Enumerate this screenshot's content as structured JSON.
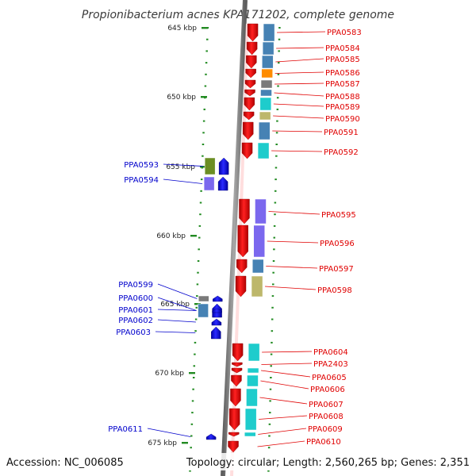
{
  "title": "Propionibacterium acnes KPA171202, complete genome",
  "footer": {
    "accession": "Accession: NC_006085",
    "stats": "Topology: circular; Length: 2,560,265 bp; Genes: 2,351"
  },
  "colors": {
    "forward_strand_arrow": "#e60000",
    "reverse_strand_arrow": "#0000e6",
    "tick": "#228b22",
    "backbone": "#8c8c8c",
    "forward_label": "#e00000",
    "reverse_label": "#0000cc",
    "function_steelblue": "#4682b4",
    "function_cyan": "#1ecccc",
    "function_orange": "#ff8c00",
    "function_gray": "#7a7a7a",
    "function_khaki": "#bdb76b",
    "function_slateblue": "#7b68ee",
    "function_olive": "#6b8e23",
    "function_spring": "#00e68c"
  },
  "kbp_labels": [
    "645 kbp",
    "650 kbp",
    "655 kbp",
    "660 kbp",
    "665 kbp",
    "670 kbp",
    "675 kbp"
  ],
  "forward_genes": [
    {
      "label": "PPA0583",
      "func_color": "steelblue"
    },
    {
      "label": "PPA0584",
      "func_color": "steelblue"
    },
    {
      "label": "PPA0585",
      "func_color": "steelblue"
    },
    {
      "label": "PPA0586",
      "func_color": "orange"
    },
    {
      "label": "PPA0587",
      "func_color": "gray"
    },
    {
      "label": "PPA0588",
      "func_color": "steelblue"
    },
    {
      "label": "PPA0589",
      "func_color": "cyan"
    },
    {
      "label": "PPA0590",
      "func_color": "khaki"
    },
    {
      "label": "PPA0591",
      "func_color": "steelblue"
    },
    {
      "label": "PPA0592",
      "func_color": "cyan"
    },
    {
      "label": "PPA0595",
      "func_color": "slateblue"
    },
    {
      "label": "PPA0596",
      "func_color": "slateblue"
    },
    {
      "label": "PPA0597",
      "func_color": "steelblue"
    },
    {
      "label": "PPA0598",
      "func_color": "khaki"
    },
    {
      "label": "PPA0604",
      "func_color": "cyan"
    },
    {
      "label": "PPA2403",
      "func_color": "none"
    },
    {
      "label": "PPA0605",
      "func_color": "cyan"
    },
    {
      "label": "PPA0606",
      "func_color": "cyan"
    },
    {
      "label": "PPA0607",
      "func_color": "cyan"
    },
    {
      "label": "PPA0608",
      "func_color": "cyan"
    },
    {
      "label": "PPA0609",
      "func_color": "cyan"
    },
    {
      "label": "PPA0610",
      "func_color": "none"
    }
  ],
  "reverse_genes": [
    {
      "label": "PPA0593",
      "func_color": "olive"
    },
    {
      "label": "PPA0594",
      "func_color": "slateblue"
    },
    {
      "label": "PPA0599",
      "func_color": "gray"
    },
    {
      "label": "PPA0600",
      "func_color": "steelblue"
    },
    {
      "label": "PPA0601",
      "func_color": "none"
    },
    {
      "label": "PPA0602",
      "func_color": "none"
    },
    {
      "label": "PPA0603",
      "func_color": "none"
    },
    {
      "label": "PPA0611",
      "func_color": "none"
    }
  ]
}
